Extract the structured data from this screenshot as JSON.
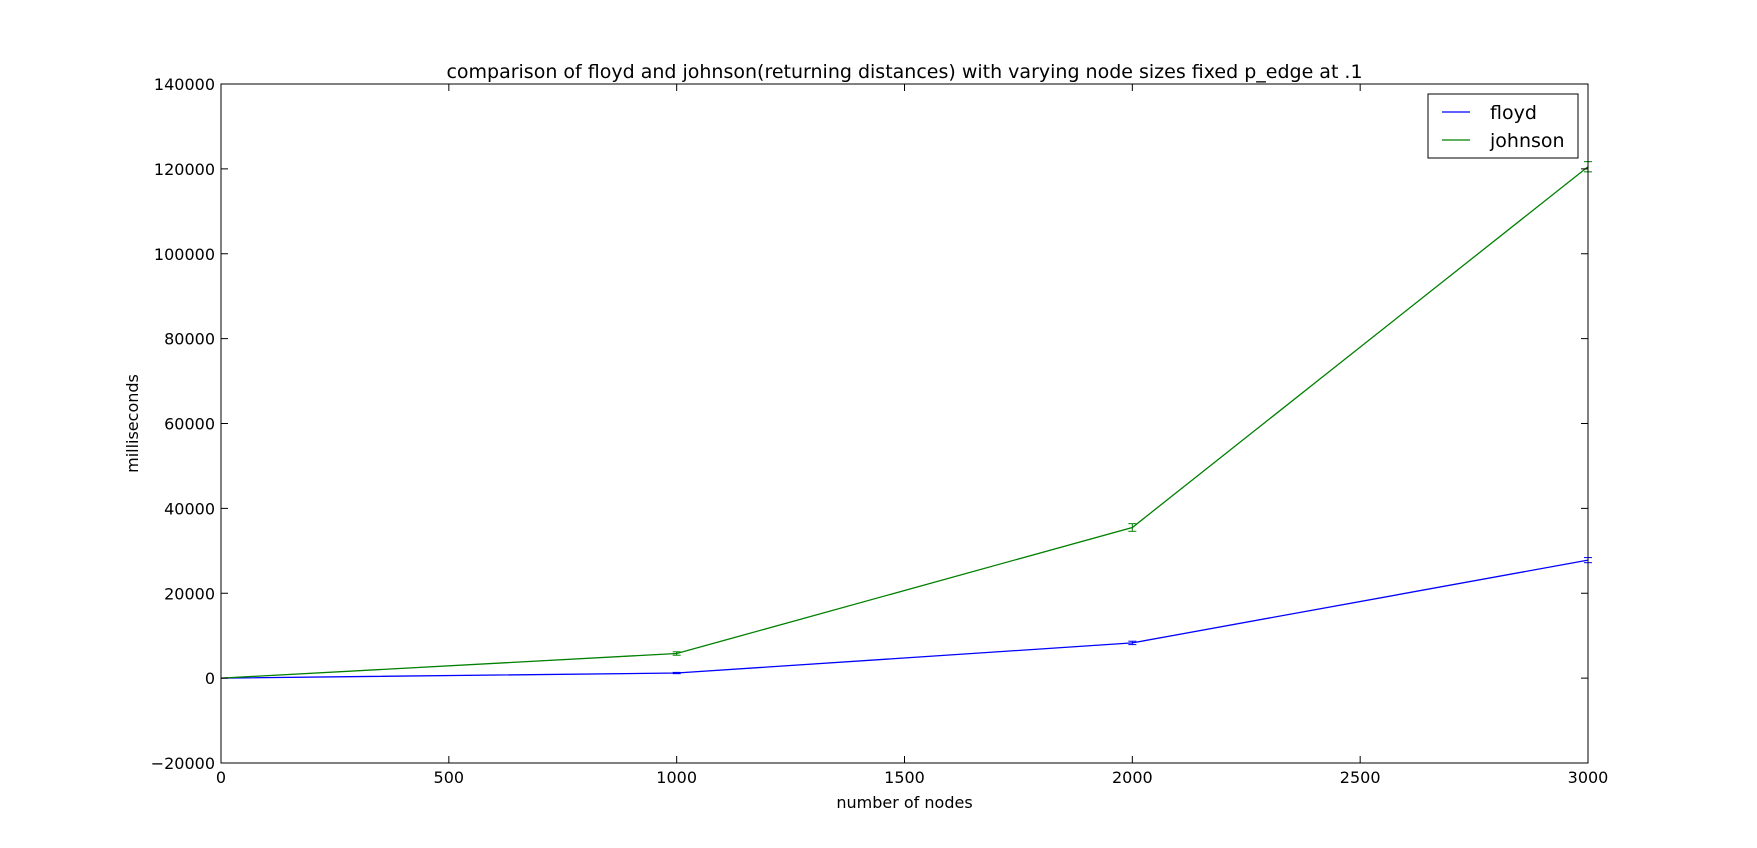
{
  "chart_data": {
    "type": "line",
    "title": "comparison of floyd and johnson(returning distances) with varying node sizes fixed p_edge at .1",
    "xlabel": "number of nodes",
    "ylabel": "milliseconds",
    "xlim": [
      0,
      3000
    ],
    "ylim": [
      -20000,
      140000
    ],
    "xticks": [
      0,
      500,
      1000,
      1500,
      2000,
      2500,
      3000
    ],
    "yticks": [
      -20000,
      0,
      20000,
      40000,
      60000,
      80000,
      100000,
      120000,
      140000
    ],
    "x_tick_labels": [
      "0",
      "500",
      "1000",
      "1500",
      "2000",
      "2500",
      "3000"
    ],
    "y_tick_labels": [
      "−20000",
      "0",
      "20000",
      "40000",
      "60000",
      "80000",
      "100000",
      "120000",
      "140000"
    ],
    "grid": false,
    "legend_position": "top-right",
    "series": [
      {
        "name": "floyd",
        "color": "#0000ff",
        "x": [
          0,
          1000,
          2000,
          3000
        ],
        "y": [
          0,
          1200,
          8300,
          27800
        ],
        "error": [
          0,
          150,
          400,
          600
        ]
      },
      {
        "name": "johnson",
        "color": "#008000",
        "x": [
          0,
          1000,
          2000,
          3000
        ],
        "y": [
          0,
          5800,
          35500,
          120500
        ],
        "error": [
          0,
          400,
          900,
          1200
        ]
      }
    ]
  }
}
